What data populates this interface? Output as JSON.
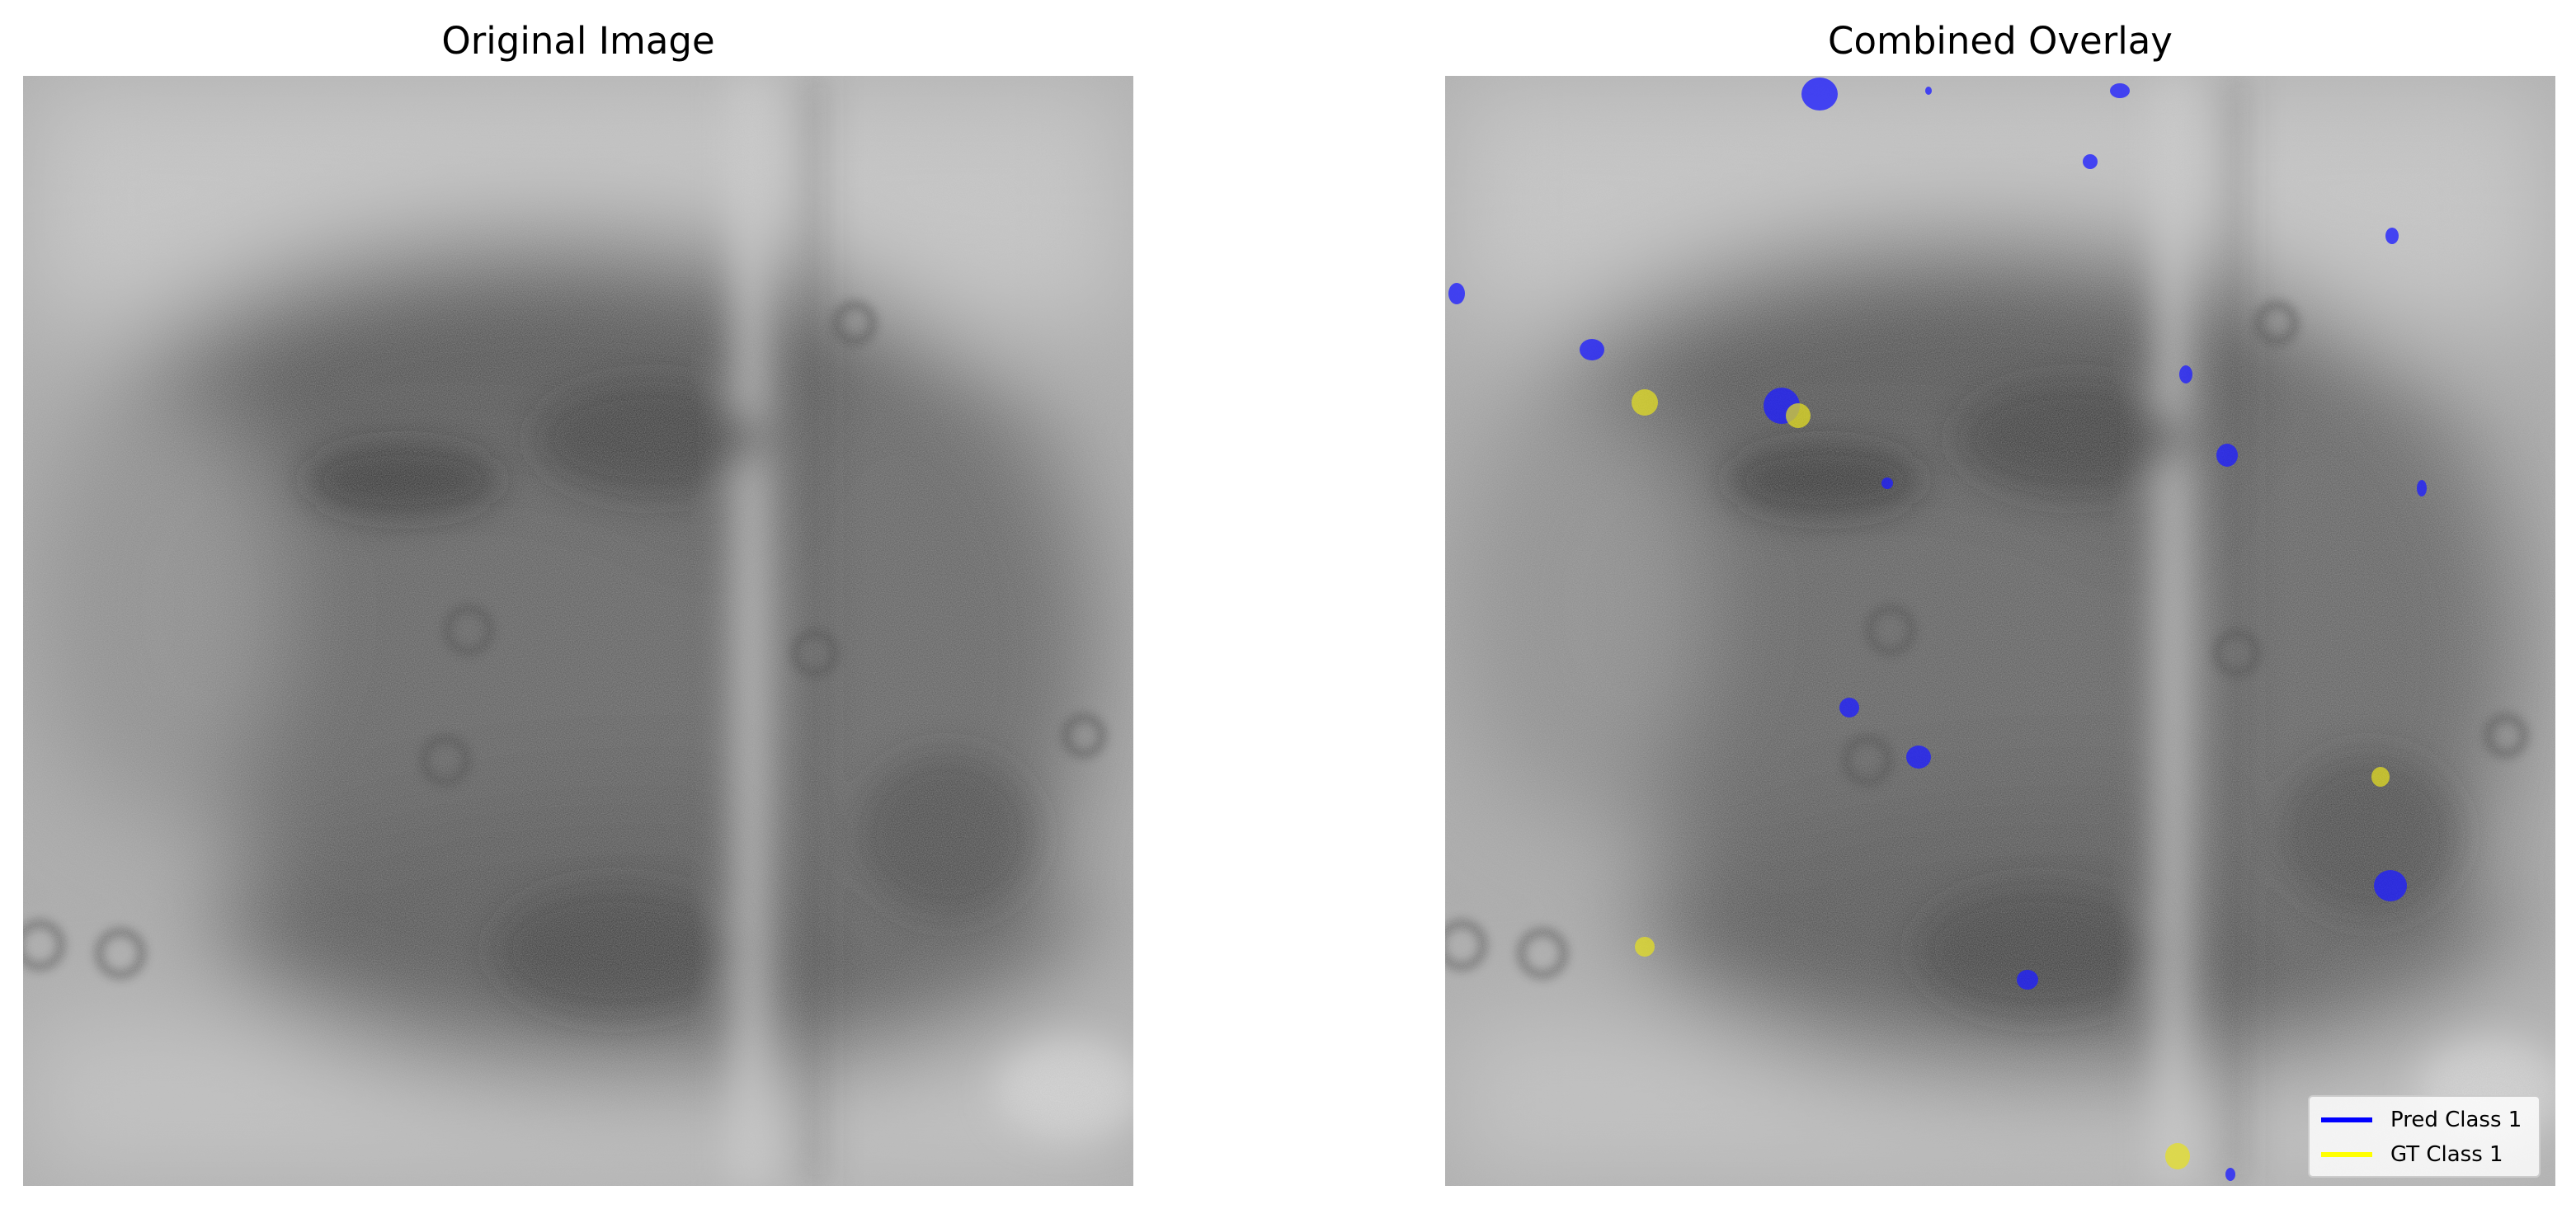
{
  "panels": {
    "left": {
      "title": "Original Image"
    },
    "right": {
      "title": "Combined Overlay"
    }
  },
  "legend": {
    "items": [
      {
        "label": "Pred Class 1",
        "color": "#0000ff"
      },
      {
        "label": "GT Class 1",
        "color": "#ffff00"
      }
    ]
  },
  "colors": {
    "pred": "#1f1fff",
    "gt": "#e6e020"
  }
}
